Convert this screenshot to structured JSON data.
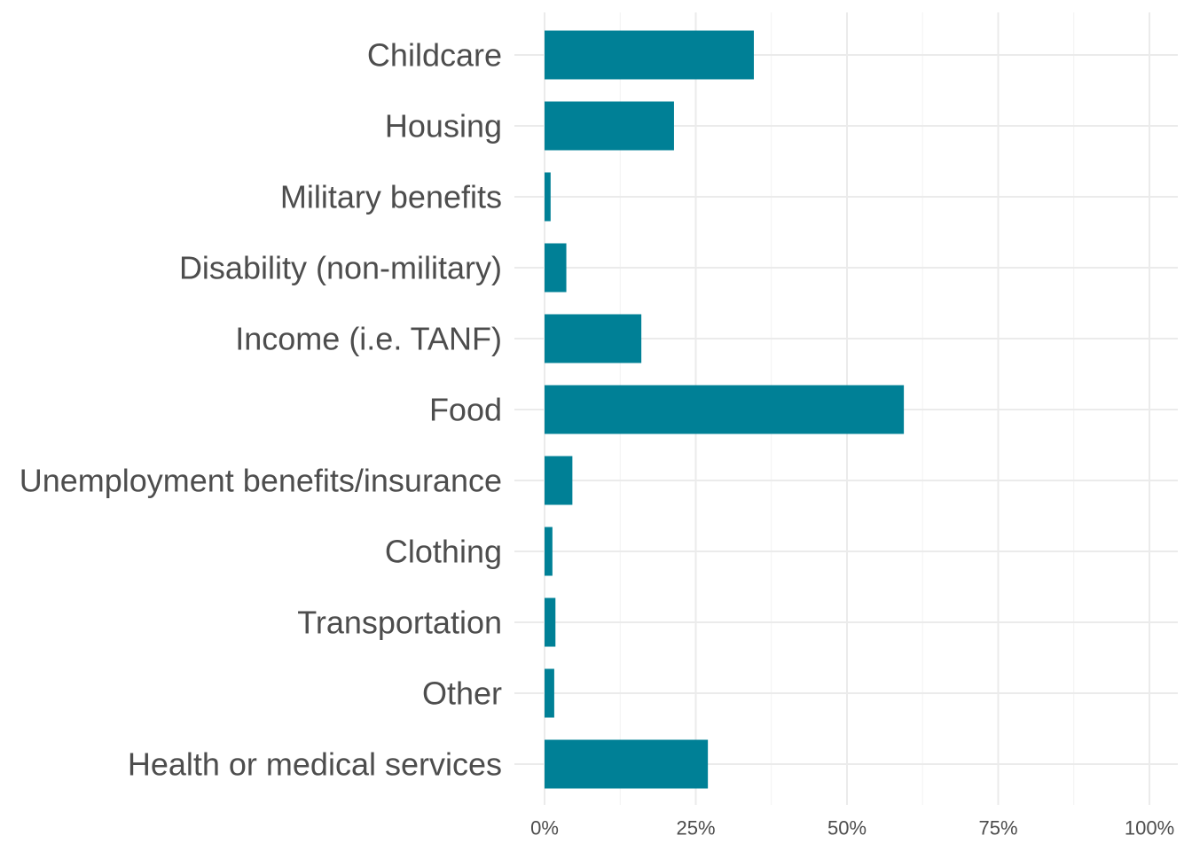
{
  "chart_data": {
    "type": "bar",
    "orientation": "horizontal",
    "categories": [
      "Childcare",
      "Housing",
      "Military benefits",
      "Disability (non-military)",
      "Income (i.e. TANF)",
      "Food",
      "Unemployment benefits/insurance",
      "Clothing",
      "Transportation",
      "Other",
      "Health or medical services"
    ],
    "values": [
      34.6,
      21.4,
      1.0,
      3.6,
      16.0,
      59.4,
      4.6,
      1.3,
      1.8,
      1.6,
      27.0
    ],
    "xlim": [
      0,
      100
    ],
    "xticks": [
      0,
      25,
      50,
      75,
      100
    ],
    "xtick_labels": [
      "0%",
      "25%",
      "50%",
      "75%",
      "100%"
    ],
    "title": "",
    "xlabel": "",
    "ylabel": "",
    "bar_color": "#008096",
    "grid": true,
    "legend": "none"
  }
}
